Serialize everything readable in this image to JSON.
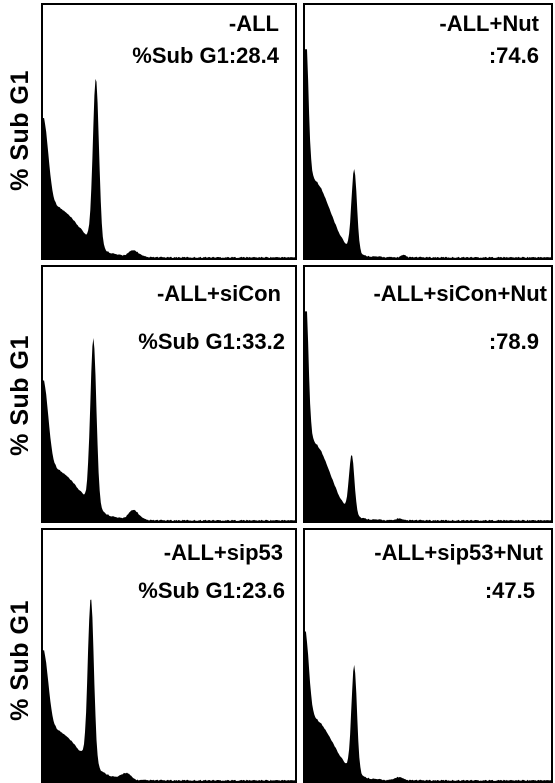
{
  "chart_data": {
    "type": "area",
    "ylabel": "% Sub G1",
    "panels": [
      {
        "id": "p1",
        "title": "-ALL",
        "stat": "%Sub G1:28.4",
        "subg1": 28.4,
        "peaks": [
          {
            "x": 0.0,
            "h": 0.55,
            "w": 0.02
          },
          {
            "x": 0.04,
            "h": 0.28,
            "w": 0.1
          },
          {
            "x": 0.21,
            "h": 1.0,
            "w": 0.012
          },
          {
            "x": 0.36,
            "h": 0.04,
            "w": 0.02
          }
        ],
        "base": 0.03
      },
      {
        "id": "p2",
        "title": "-ALL+Nut",
        "stat": ":74.6",
        "subg1": 74.6,
        "peaks": [
          {
            "x": 0.0,
            "h": 1.05,
            "w": 0.012
          },
          {
            "x": 0.03,
            "h": 0.45,
            "w": 0.07
          },
          {
            "x": 0.2,
            "h": 0.5,
            "w": 0.011
          },
          {
            "x": 0.4,
            "h": 0.012,
            "w": 0.01
          }
        ],
        "base": 0.02
      },
      {
        "id": "p3",
        "title": "-ALL+siCon",
        "stat": "%Sub G1:33.2",
        "subg1": 33.2,
        "peaks": [
          {
            "x": 0.0,
            "h": 0.55,
            "w": 0.02
          },
          {
            "x": 0.04,
            "h": 0.28,
            "w": 0.1
          },
          {
            "x": 0.2,
            "h": 1.0,
            "w": 0.012
          },
          {
            "x": 0.36,
            "h": 0.06,
            "w": 0.02
          }
        ],
        "base": 0.03
      },
      {
        "id": "p4",
        "title": "-ALL+siCon+Nut",
        "stat": ":78.9",
        "subg1": 78.9,
        "peaks": [
          {
            "x": 0.0,
            "h": 1.05,
            "w": 0.012
          },
          {
            "x": 0.03,
            "h": 0.45,
            "w": 0.07
          },
          {
            "x": 0.19,
            "h": 0.35,
            "w": 0.011
          },
          {
            "x": 0.38,
            "h": 0.012,
            "w": 0.01
          }
        ],
        "base": 0.02
      },
      {
        "id": "p5",
        "title": "-ALL+sip53",
        "stat": "%Sub G1:23.6",
        "subg1": 23.6,
        "peaks": [
          {
            "x": 0.0,
            "h": 0.5,
            "w": 0.02
          },
          {
            "x": 0.04,
            "h": 0.28,
            "w": 0.1
          },
          {
            "x": 0.19,
            "h": 1.0,
            "w": 0.012
          },
          {
            "x": 0.33,
            "h": 0.04,
            "w": 0.018
          }
        ],
        "base": 0.03
      },
      {
        "id": "p6",
        "title": "-ALL+sip53+Nut",
        "stat": ":47.5",
        "subg1": 47.5,
        "peaks": [
          {
            "x": 0.0,
            "h": 0.55,
            "w": 0.015
          },
          {
            "x": 0.03,
            "h": 0.35,
            "w": 0.08
          },
          {
            "x": 0.2,
            "h": 0.65,
            "w": 0.011
          },
          {
            "x": 0.38,
            "h": 0.02,
            "w": 0.015
          }
        ],
        "base": 0.03
      }
    ]
  }
}
